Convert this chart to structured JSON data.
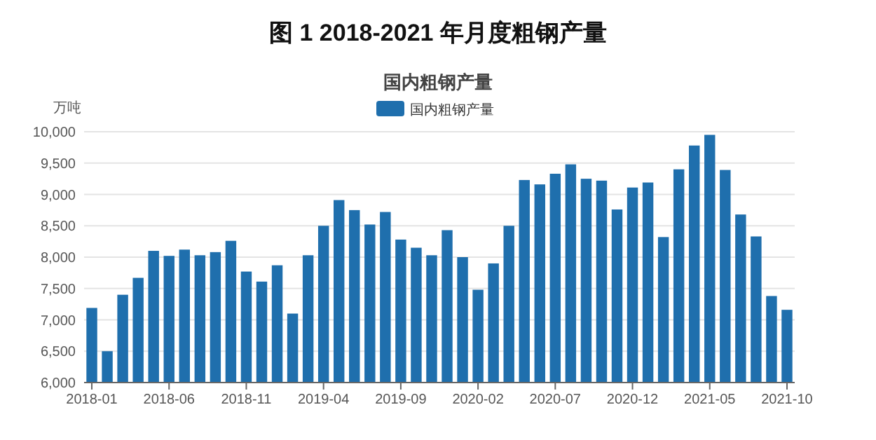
{
  "chart_data": {
    "type": "bar",
    "title": "图 1 2018-2021 年月度粗钢产量",
    "subtitle": "国内粗钢产量",
    "ylabel": "万吨",
    "categories": [
      "2018-01",
      null,
      null,
      null,
      null,
      "2018-06",
      null,
      null,
      null,
      null,
      "2018-11",
      null,
      null,
      null,
      null,
      "2019-04",
      null,
      null,
      null,
      null,
      "2019-09",
      null,
      null,
      null,
      null,
      "2020-02",
      null,
      null,
      null,
      null,
      "2020-07",
      null,
      null,
      null,
      null,
      "2020-12",
      null,
      null,
      null,
      null,
      "2021-05",
      null,
      null,
      null,
      null,
      "2021-10"
    ],
    "series": [
      {
        "name": "国内粗钢产量",
        "color": "#1f6fad",
        "values": [
          7190,
          6500,
          7400,
          7670,
          8100,
          8020,
          8120,
          8030,
          8080,
          8260,
          7770,
          7610,
          7870,
          7100,
          8030,
          8500,
          8910,
          8750,
          8520,
          8720,
          8280,
          8150,
          8030,
          8430,
          8000,
          7480,
          7900,
          8500,
          9230,
          9160,
          9330,
          9480,
          9250,
          9220,
          8760,
          9110,
          9190,
          8320,
          9400,
          9780,
          9950,
          9390,
          8680,
          8330,
          7380,
          7160
        ]
      }
    ],
    "ylim": [
      6000,
      10000
    ],
    "yticks": [
      {
        "value": 6000,
        "label": "6,000"
      },
      {
        "value": 6500,
        "label": "6,500"
      },
      {
        "value": 7000,
        "label": "7,000"
      },
      {
        "value": 7500,
        "label": "7,500"
      },
      {
        "value": 8000,
        "label": "8,000"
      },
      {
        "value": 8500,
        "label": "8,500"
      },
      {
        "value": 9000,
        "label": "9,000"
      },
      {
        "value": 9500,
        "label": "9,500"
      },
      {
        "value": 10000,
        "label": "10,000"
      }
    ],
    "grid": "y",
    "legend": "top"
  }
}
